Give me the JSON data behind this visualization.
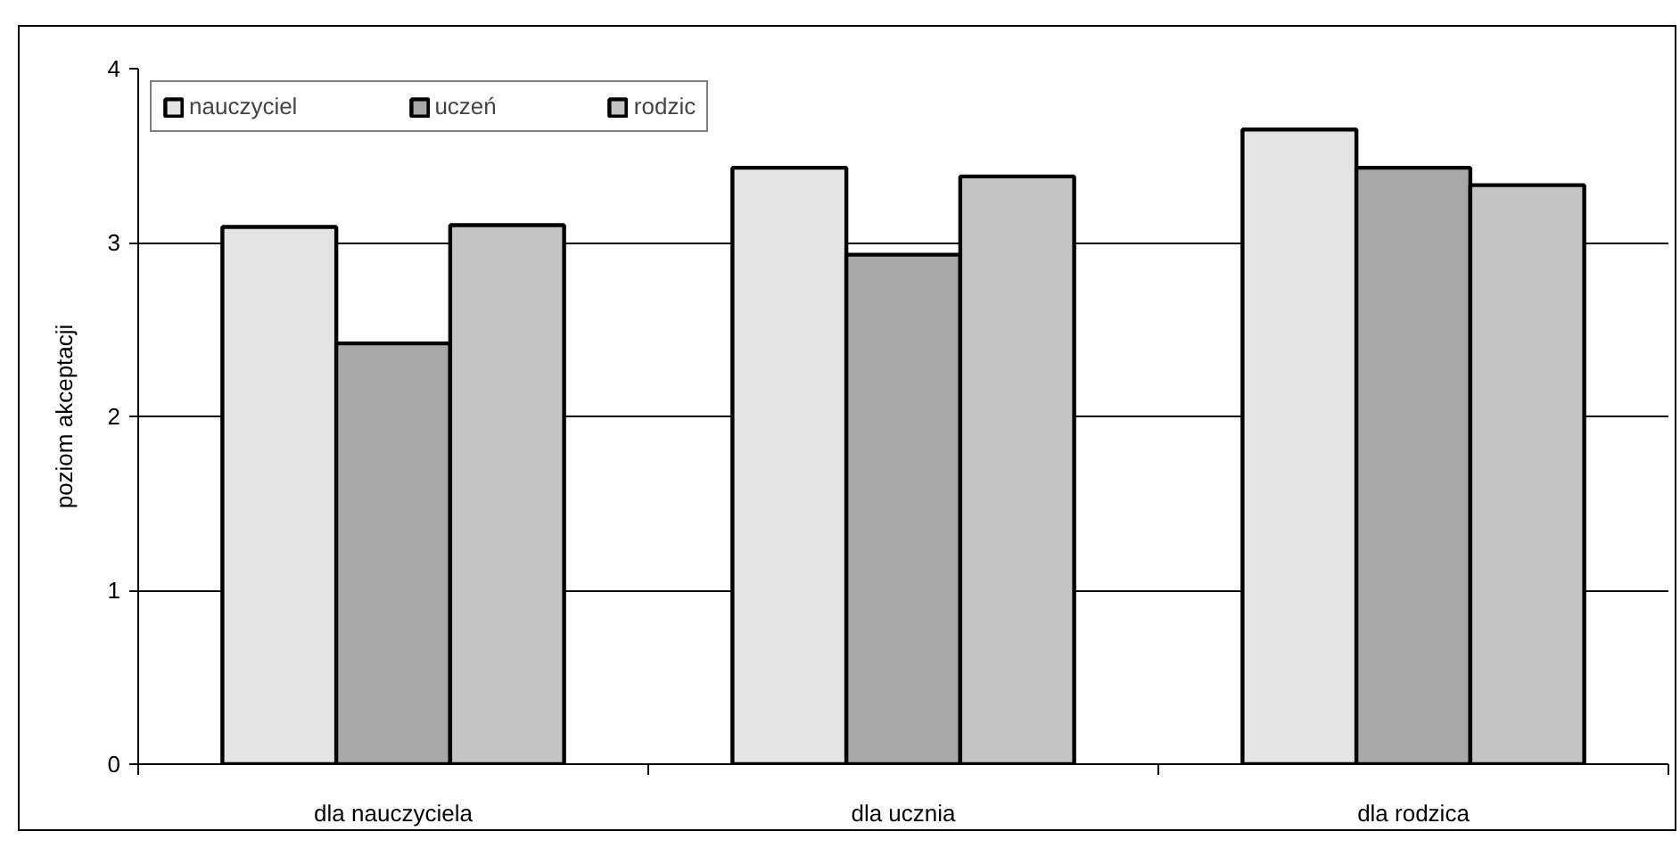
{
  "chart_data": {
    "type": "bar",
    "categories": [
      "dla nauczyciela",
      "dla ucznia",
      "dla rodzica"
    ],
    "ylabel": "poziom akceptacji",
    "series": [
      {
        "name": "nauczyciel",
        "color": "#e4e4e4",
        "values": [
          3.09,
          3.43,
          3.65
        ]
      },
      {
        "name": "uczeń",
        "color": "#a8a8a8",
        "values": [
          2.42,
          2.93,
          3.43
        ]
      },
      {
        "name": "rodzic",
        "color": "#c4c4c4",
        "values": [
          3.1,
          3.38,
          3.33
        ]
      }
    ],
    "ylim": [
      0,
      4
    ],
    "yticks": [
      0,
      1,
      2,
      3,
      4
    ],
    "grid": "y",
    "legend": "top left"
  }
}
